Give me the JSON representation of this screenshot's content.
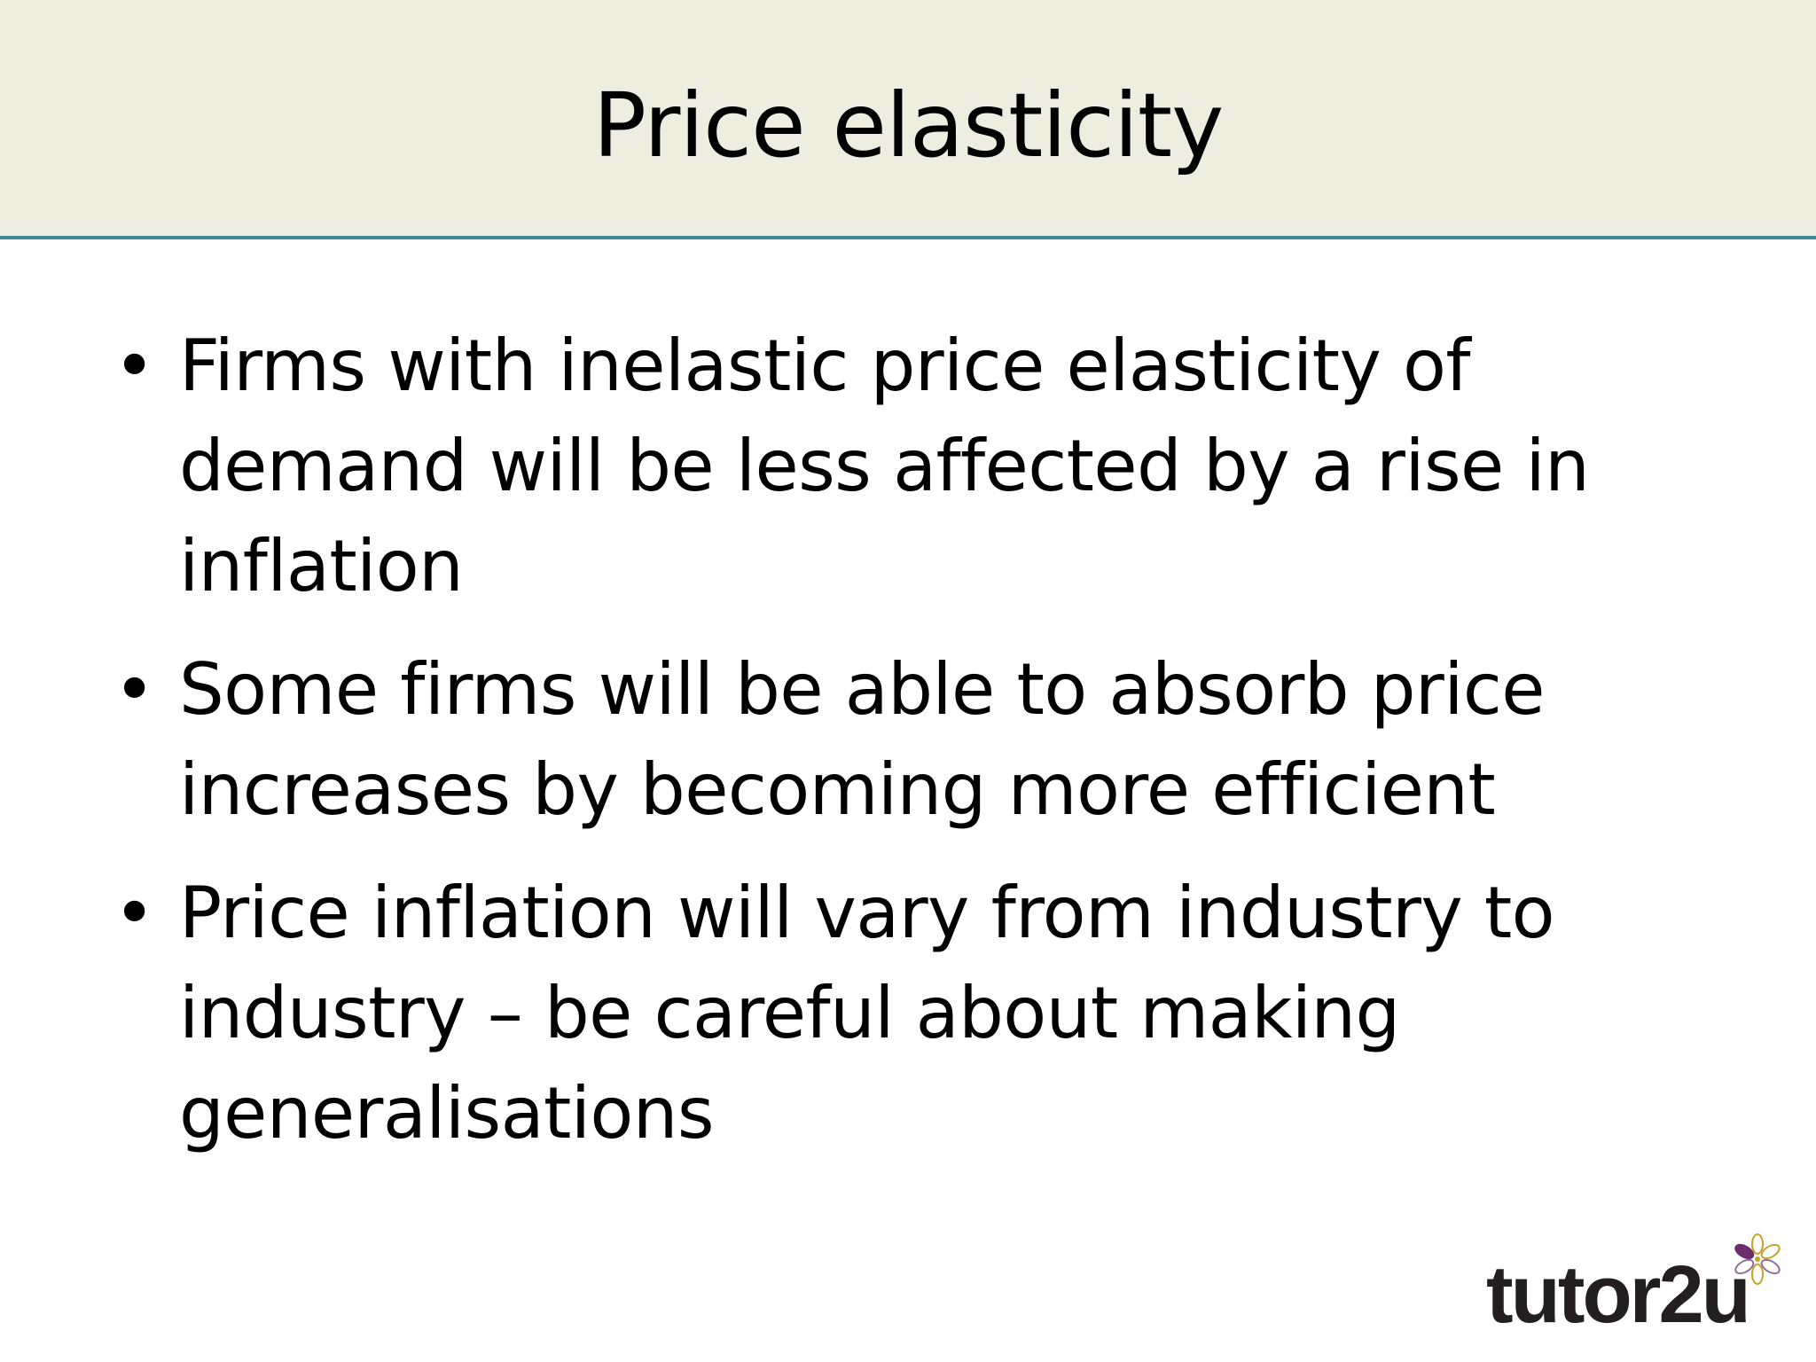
{
  "slide": {
    "title": "Price elasticity",
    "bullet_symbol": "•",
    "bullets": [
      "Firms with inelastic price elasticity of demand will be less affected by a rise in inflation",
      "Some firms will be able to absorb price increases by becoming more efficient",
      "Price inflation will vary from industry to industry – be careful about making generalisations"
    ]
  },
  "branding": {
    "logo_text": "tutor2u",
    "logo_icon": "flower-icon",
    "colors": {
      "header_background": "#eeeee0",
      "header_rule": "#3d8a9a",
      "logo_text": "#231f20",
      "logo_accent_purple": "#6b2c6e",
      "logo_accent_gold": "#c9a227"
    }
  }
}
